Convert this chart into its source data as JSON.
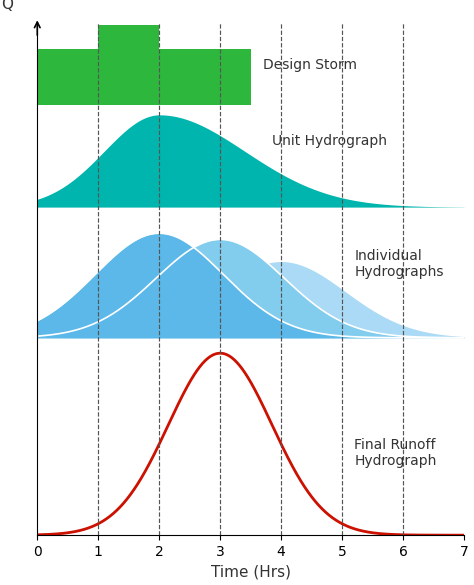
{
  "xlabel": "Time (Hrs)",
  "ylabel": "Q",
  "xlim": [
    0,
    7
  ],
  "ylim": [
    0,
    1
  ],
  "xticks": [
    0,
    1,
    2,
    3,
    4,
    5,
    6,
    7
  ],
  "dashed_lines_x": [
    1,
    2,
    3,
    4,
    5,
    6
  ],
  "bar_color": "#2db83d",
  "design_storm_label": "Design Storm",
  "unit_hydro_color": "#00b5ad",
  "unit_hydro_label": "Unit Hydrograph",
  "indiv_colors": [
    "#5bb8e8",
    "#82ccee",
    "#aadaf5"
  ],
  "indiv_hydro_label": "Individual\nHydrographs",
  "final_hydro_color": "#cc1100",
  "final_hydro_label": "Final Runoff\nHydrograph",
  "background_color": "#ffffff",
  "font_color": "#333333",
  "annotation_fontsize": 10,
  "tick_fontsize": 10,
  "axis_label_fontsize": 11,
  "ds_section": [
    0.84,
    0.995
  ],
  "uh_section": [
    0.64,
    0.82
  ],
  "ih_section": [
    0.385,
    0.625
  ],
  "fr_section": [
    0.0,
    0.355
  ]
}
